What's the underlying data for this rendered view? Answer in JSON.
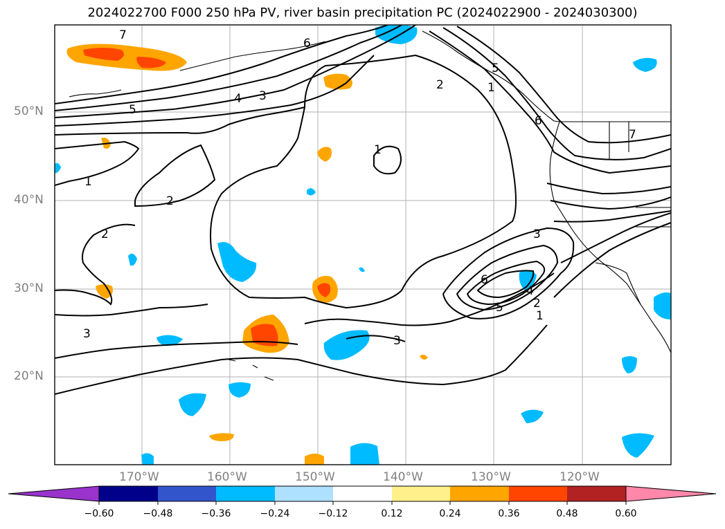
{
  "title": "2024022700 F000 250 hPa PV, river basin precipitation PC (2024022900 - 2024030300)",
  "map": {
    "lat_labels": [
      "50°N",
      "40°N",
      "30°N",
      "20°N"
    ],
    "lon_labels": [
      "170°W",
      "160°W",
      "150°W",
      "140°W",
      "130°W",
      "120°W"
    ],
    "contour_labels": [
      "7",
      "6",
      "5",
      "4",
      "3",
      "2",
      "1",
      "1",
      "2",
      "3",
      "5",
      "6",
      "7",
      "3",
      "2",
      "1",
      "2",
      "3",
      "6",
      "5",
      "4",
      "1"
    ]
  },
  "colorbar": {
    "ticks": [
      "−0.60",
      "−0.48",
      "−0.36",
      "−0.24",
      "−0.12",
      "0.12",
      "0.24",
      "0.36",
      "0.48",
      "0.60"
    ],
    "colors": [
      "#9933cc",
      "#00008b",
      "#3355cc",
      "#00bbff",
      "#aee0ff",
      "#ffffff",
      "#fff08c",
      "#ffa500",
      "#ff4500",
      "#b22222",
      "#ff88aa"
    ]
  }
}
